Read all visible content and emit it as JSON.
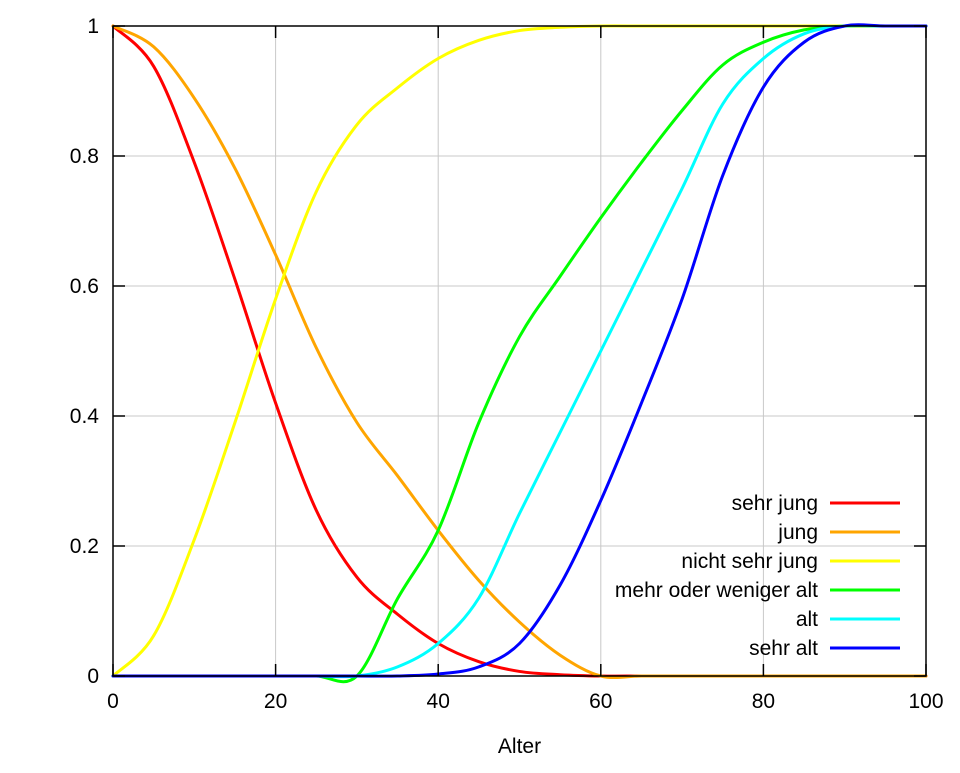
{
  "chart_data": {
    "type": "line",
    "title": "",
    "xlabel": "Alter",
    "ylabel": "",
    "xlim": [
      0,
      100
    ],
    "ylim": [
      0,
      1
    ],
    "grid": true,
    "legend_position": "bottom-right",
    "x_ticks": [
      "0",
      "20",
      "40",
      "60",
      "80",
      "100"
    ],
    "y_ticks": [
      "0",
      "0.2",
      "0.4",
      "0.6",
      "0.8",
      "1"
    ],
    "x_tick_values": [
      0,
      20,
      40,
      60,
      80,
      100
    ],
    "y_tick_values": [
      0,
      0.2,
      0.4,
      0.6,
      0.8,
      1
    ],
    "x": [
      0,
      5,
      10,
      15,
      20,
      25,
      30,
      35,
      40,
      45,
      50,
      55,
      60,
      65,
      70,
      75,
      80,
      85,
      90,
      95,
      100
    ],
    "series": [
      {
        "name": "sehr jung",
        "color": "#ff0000",
        "values": [
          1,
          0.938,
          0.79,
          0.61,
          0.42,
          0.255,
          0.152,
          0.095,
          0.05,
          0.022,
          0.007,
          0.002,
          0,
          0,
          0,
          0,
          0,
          0,
          0,
          0,
          0
        ]
      },
      {
        "name": "jung",
        "color": "#ffa500",
        "values": [
          1,
          0.968,
          0.889,
          0.781,
          0.648,
          0.505,
          0.39,
          0.308,
          0.224,
          0.147,
          0.083,
          0.032,
          0,
          0,
          0,
          0,
          0,
          0,
          0,
          0,
          0
        ]
      },
      {
        "name": "nicht sehr jung",
        "color": "#ffff00",
        "values": [
          0,
          0.062,
          0.21,
          0.39,
          0.58,
          0.745,
          0.848,
          0.905,
          0.95,
          0.978,
          0.993,
          0.998,
          1,
          1,
          1,
          1,
          1,
          1,
          1,
          1,
          1
        ]
      },
      {
        "name": "mehr oder weniger alt",
        "color": "#00ff00",
        "values": [
          0,
          0,
          0,
          0,
          0,
          0,
          0,
          0.119,
          0.224,
          0.39,
          0.522,
          0.615,
          0.705,
          0.79,
          0.87,
          0.94,
          0.975,
          0.994,
          1,
          1,
          1
        ]
      },
      {
        "name": "alt",
        "color": "#00ffff",
        "values": [
          0,
          0,
          0,
          0,
          0,
          0,
          0,
          0.014,
          0.05,
          0.12,
          0.25,
          0.375,
          0.5,
          0.625,
          0.75,
          0.88,
          0.95,
          0.988,
          1,
          1,
          1
        ]
      },
      {
        "name": "sehr alt",
        "color": "#0000ff",
        "values": [
          0,
          0,
          0,
          0,
          0,
          0,
          0,
          0,
          0.003,
          0.014,
          0.05,
          0.14,
          0.27,
          0.42,
          0.58,
          0.77,
          0.906,
          0.975,
          1,
          1,
          1
        ]
      }
    ]
  }
}
